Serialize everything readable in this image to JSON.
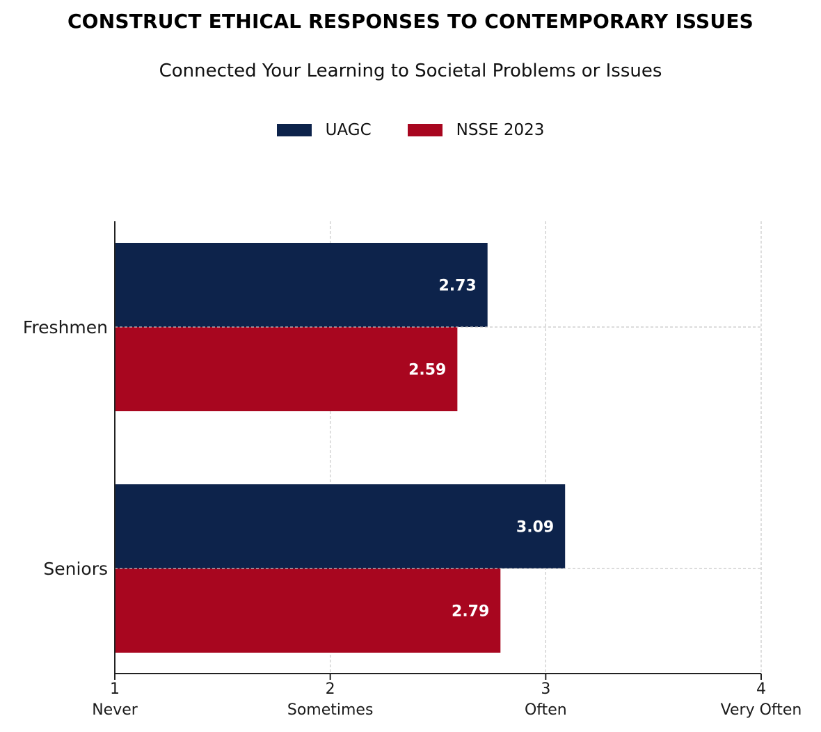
{
  "title": "CONSTRUCT ETHICAL RESPONSES TO CONTEMPORARY ISSUES",
  "subtitle": "Connected Your Learning to Societal Problems or Issues",
  "colors": {
    "uagc": "#0d234b",
    "nsse": "#a8061f",
    "grid": "#c8c8c8",
    "axis": "#222222"
  },
  "chart_data": {
    "type": "bar",
    "orientation": "horizontal",
    "categories": [
      "Freshmen",
      "Seniors"
    ],
    "series": [
      {
        "name": "UAGC",
        "values": [
          2.73,
          3.09
        ],
        "color": "#0d234b"
      },
      {
        "name": "NSSE 2023",
        "values": [
          2.59,
          2.79
        ],
        "color": "#a8061f"
      }
    ],
    "xlim": [
      1,
      4
    ],
    "x_ticks": [
      1,
      2,
      3,
      4
    ],
    "x_tick_labels": [
      "Never",
      "Sometimes",
      "Often",
      "Very Often"
    ],
    "data_labels": [
      [
        "2.73",
        "3.09"
      ],
      [
        "2.59",
        "2.79"
      ]
    ],
    "grid": true,
    "legend_position": "top-center"
  }
}
